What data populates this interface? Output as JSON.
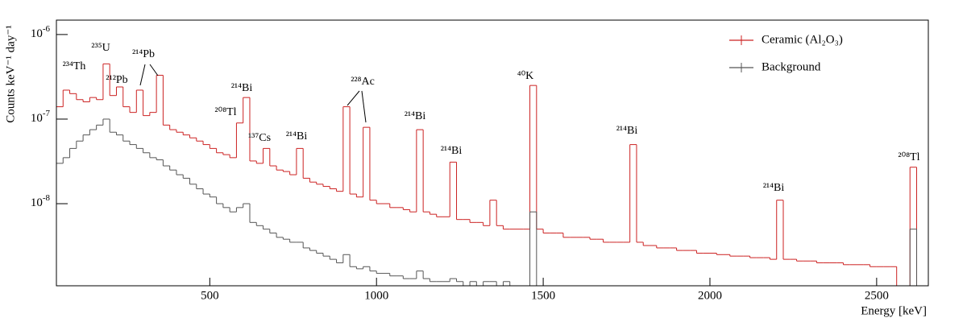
{
  "chart_data": {
    "type": "histogram",
    "x_label": "Energy [keV]",
    "y_label": "Counts keV⁻¹ day⁻¹",
    "log_y": true,
    "legend": "upper right",
    "xlim": [
      40,
      2655
    ],
    "xticks": [
      500,
      1000,
      1500,
      2000,
      2500
    ],
    "ylim": [
      1.07e-09,
      1.48e-06
    ],
    "yticks": [
      {
        "value": 1e-06,
        "label": "10",
        "exponent": "-6"
      },
      {
        "value": 1e-07,
        "label": "10",
        "exponent": "-7"
      },
      {
        "value": 1e-08,
        "label": "10",
        "exponent": "-8"
      }
    ],
    "bins": [
      40,
      60,
      80,
      100,
      120,
      140,
      160,
      180,
      200,
      220,
      240,
      260,
      280,
      300,
      320,
      340,
      360,
      380,
      400,
      420,
      440,
      460,
      480,
      500,
      520,
      540,
      560,
      580,
      600,
      620,
      640,
      660,
      680,
      700,
      720,
      740,
      760,
      780,
      800,
      820,
      840,
      860,
      880,
      900,
      920,
      940,
      960,
      980,
      1000,
      1020,
      1040,
      1060,
      1080,
      1100,
      1120,
      1140,
      1160,
      1180,
      1200,
      1220,
      1240,
      1260,
      1280,
      1300,
      1320,
      1340,
      1360,
      1380,
      1400,
      1420,
      1440,
      1460,
      1480,
      1500,
      1520,
      1540,
      1560,
      1580,
      1600,
      1620,
      1640,
      1660,
      1680,
      1700,
      1720,
      1740,
      1760,
      1780,
      1800,
      1820,
      1840,
      1860,
      1880,
      1900,
      1920,
      1940,
      1960,
      1980,
      2000,
      2020,
      2040,
      2060,
      2080,
      2100,
      2120,
      2140,
      2160,
      2180,
      2200,
      2220,
      2240,
      2260,
      2280,
      2300,
      2320,
      2340,
      2360,
      2380,
      2400,
      2420,
      2440,
      2460,
      2480,
      2500,
      2520,
      2540,
      2560,
      2580,
      2600,
      2620,
      2640,
      2660
    ],
    "series": [
      {
        "name": "Ceramic (Al₂O₃)",
        "color": "#cc2222",
        "values": [
          1.4e-07,
          2.2e-07,
          2e-07,
          1.7e-07,
          1.6e-07,
          1.8e-07,
          1.7e-07,
          4.5e-07,
          1.9e-07,
          2.4e-07,
          1.4e-07,
          1.2e-07,
          2.2e-07,
          1.1e-07,
          1.2e-07,
          3.3e-07,
          8.5e-08,
          7.5e-08,
          7e-08,
          6.5e-08,
          6e-08,
          5.5e-08,
          5e-08,
          4.5e-08,
          4e-08,
          3.8e-08,
          3.5e-08,
          9e-08,
          1.8e-07,
          3.2e-08,
          3e-08,
          4.5e-08,
          2.8e-08,
          2.5e-08,
          2.4e-08,
          2.2e-08,
          4.5e-08,
          2e-08,
          1.8e-08,
          1.7e-08,
          1.6e-08,
          1.5e-08,
          1.4e-08,
          1.4e-07,
          1.3e-08,
          1.2e-08,
          8e-08,
          1.1e-08,
          1e-08,
          1e-08,
          9e-09,
          9e-09,
          8.5e-09,
          8e-09,
          7.5e-08,
          8e-09,
          7.5e-09,
          7e-09,
          7e-09,
          3.1e-08,
          6.5e-09,
          6.5e-09,
          6e-09,
          6e-09,
          5.5e-09,
          1.1e-08,
          5.5e-09,
          5e-09,
          5e-09,
          5e-09,
          5e-09,
          2.5e-07,
          5e-09,
          4.5e-09,
          4.5e-09,
          4.5e-09,
          4e-09,
          4e-09,
          4e-09,
          4e-09,
          3.8e-09,
          3.8e-09,
          3.5e-09,
          3.5e-09,
          3.5e-09,
          3.5e-09,
          5e-08,
          3.5e-09,
          3.2e-09,
          3.2e-09,
          3e-09,
          3e-09,
          3e-09,
          2.8e-09,
          2.8e-09,
          2.8e-09,
          2.6e-09,
          2.6e-09,
          2.6e-09,
          2.5e-09,
          2.5e-09,
          2.4e-09,
          2.4e-09,
          2.4e-09,
          2.3e-09,
          2.3e-09,
          2.3e-09,
          2.2e-09,
          1.1e-08,
          2.2e-09,
          2.2e-09,
          2.1e-09,
          2.1e-09,
          2.1e-09,
          2e-09,
          2e-09,
          2e-09,
          2e-09,
          1.9e-09,
          1.9e-09,
          1.9e-09,
          1.9e-09,
          1.8e-09,
          1.8e-09,
          1.8e-09,
          1.8e-09,
          0,
          0,
          2.7e-08,
          0,
          0
        ]
      },
      {
        "name": "Background",
        "color": "#555555",
        "values": [
          3e-08,
          3.5e-08,
          4.5e-08,
          5.5e-08,
          6.5e-08,
          7.5e-08,
          8.5e-08,
          1e-07,
          7e-08,
          6.5e-08,
          5.5e-08,
          5e-08,
          4.5e-08,
          4e-08,
          3.5e-08,
          3.3e-08,
          2.8e-08,
          2.5e-08,
          2.2e-08,
          2e-08,
          1.7e-08,
          1.5e-08,
          1.3e-08,
          1.2e-08,
          1e-08,
          9e-09,
          8e-09,
          9e-09,
          1e-08,
          6e-09,
          5.5e-09,
          5e-09,
          4.5e-09,
          4e-09,
          3.8e-09,
          3.5e-09,
          3.5e-09,
          3e-09,
          2.8e-09,
          2.6e-09,
          2.4e-09,
          2.2e-09,
          2e-09,
          2.5e-09,
          1.8e-09,
          1.7e-09,
          1.8e-09,
          1.6e-09,
          1.5e-09,
          1.5e-09,
          1.4e-09,
          1.4e-09,
          1.3e-09,
          1.3e-09,
          1.6e-09,
          1.3e-09,
          1.2e-09,
          1.2e-09,
          1.2e-09,
          1.3e-09,
          1.2e-09,
          0,
          1.2e-09,
          0,
          1.2e-09,
          1.2e-09,
          0,
          1.2e-09,
          0,
          0,
          0,
          8e-09,
          0,
          0,
          0,
          0,
          0,
          0,
          0,
          0,
          0,
          0,
          0,
          0,
          0,
          0,
          0,
          0,
          0,
          0,
          0,
          0,
          0,
          0,
          0,
          0,
          0,
          0,
          0,
          0,
          0,
          0,
          0,
          0,
          0,
          0,
          0,
          0,
          0,
          0,
          0,
          0,
          0,
          0,
          0,
          0,
          0,
          0,
          0,
          0,
          0,
          0,
          0,
          0,
          0,
          0,
          0,
          0,
          5e-09,
          0,
          0
        ]
      }
    ],
    "annotations": [
      {
        "text": "²³⁴Th"
      },
      {
        "text": "²³⁵U"
      },
      {
        "text": "²¹²Pb"
      },
      {
        "text": "²¹⁴Pb"
      },
      {
        "text": "²¹⁴Bi"
      },
      {
        "text": "²⁰⁸Tl"
      },
      {
        "text": "¹³⁷Cs"
      },
      {
        "text": "²¹⁴Bi"
      },
      {
        "text": "²²⁸Ac"
      },
      {
        "text": "²¹⁴Bi"
      },
      {
        "text": "²¹⁴Bi"
      },
      {
        "text": "⁴⁰K"
      },
      {
        "text": "²¹⁴Bi"
      },
      {
        "text": "²¹⁴Bi"
      },
      {
        "text": "²⁰⁸Tl"
      }
    ]
  }
}
